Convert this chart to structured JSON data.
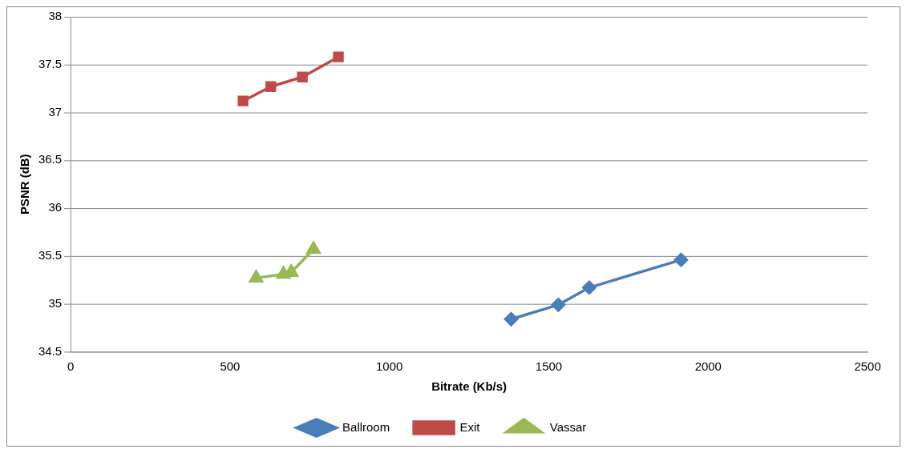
{
  "chart_data": {
    "type": "line",
    "xlabel": "Bitrate (Kb/s)",
    "ylabel": "PSNR (dB)",
    "xlim": [
      0,
      2500
    ],
    "xticks": [
      0,
      500,
      1000,
      1500,
      2000,
      2500
    ],
    "ylim": [
      34.5,
      38
    ],
    "yticks": [
      34.5,
      35,
      35.5,
      36,
      36.5,
      37,
      37.5,
      38
    ],
    "grid": "y",
    "legend": "bottom",
    "line_style": "solid",
    "series": [
      {
        "name": "Ballroom",
        "color": "#4a7ebb",
        "marker": "diamond",
        "x": [
          1382,
          1530,
          1627,
          1915
        ],
        "values": [
          34.84,
          34.99,
          35.17,
          35.46
        ]
      },
      {
        "name": "Exit",
        "color": "#be4b48",
        "marker": "square",
        "x": [
          541,
          628,
          727,
          840
        ],
        "values": [
          37.12,
          37.27,
          37.37,
          37.58
        ]
      },
      {
        "name": "Vassar",
        "color": "#98b954",
        "marker": "triangle",
        "x": [
          582,
          668,
          692,
          762
        ],
        "values": [
          35.27,
          35.31,
          35.33,
          35.57
        ]
      }
    ]
  }
}
